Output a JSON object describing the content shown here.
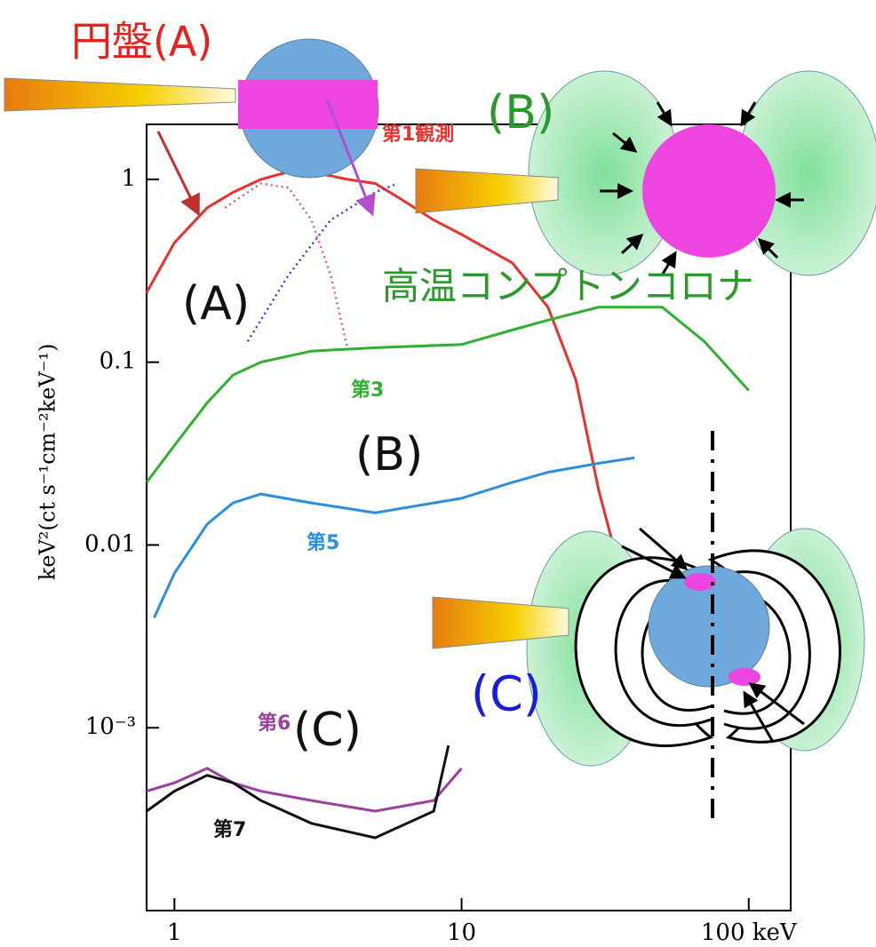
{
  "chart_data": {
    "type": "line",
    "ylabel": "keV²(ct s⁻¹cm⁻²keV⁻¹)",
    "xscale": "log",
    "yscale": "log",
    "xlim": [
      0.8,
      140
    ],
    "ylim": [
      0.0001,
      2
    ],
    "xticks": [
      1,
      10,
      {
        "value": 100,
        "label": "100 keV"
      }
    ],
    "yticks": [
      1,
      0.1,
      0.01,
      {
        "value": 0.001,
        "label": "10⁻³"
      }
    ],
    "series": [
      {
        "name": "第1観測",
        "color": "#e8322b",
        "style": "data",
        "x": [
          0.8,
          1,
          1.3,
          1.6,
          2,
          2.5,
          3,
          4,
          5,
          6,
          8,
          10,
          15,
          20,
          25,
          30,
          35
        ],
        "values": [
          0.24,
          0.45,
          0.7,
          0.85,
          1.0,
          1.1,
          1.1,
          1.0,
          0.95,
          0.8,
          0.6,
          0.5,
          0.35,
          0.2,
          0.08,
          0.02,
          0.008
        ]
      },
      {
        "name": "第3",
        "color": "#2fb02f",
        "style": "data",
        "x": [
          0.8,
          1,
          1.3,
          1.6,
          2,
          3,
          5,
          10,
          15,
          20,
          30,
          50,
          70,
          100
        ],
        "values": [
          0.022,
          0.035,
          0.06,
          0.085,
          0.1,
          0.115,
          0.12,
          0.125,
          0.15,
          0.17,
          0.2,
          0.2,
          0.13,
          0.07
        ]
      },
      {
        "name": "第5",
        "color": "#2a8fe0",
        "style": "data",
        "x": [
          0.85,
          1,
          1.3,
          1.6,
          2,
          3,
          5,
          8,
          10,
          15,
          20,
          30,
          40
        ],
        "values": [
          0.004,
          0.007,
          0.013,
          0.017,
          0.019,
          0.017,
          0.015,
          0.017,
          0.018,
          0.022,
          0.025,
          0.028,
          0.03
        ]
      },
      {
        "name": "第6",
        "color": "#9b3fa0",
        "style": "data",
        "x": [
          0.8,
          1,
          1.3,
          1.6,
          2,
          3,
          5,
          8,
          10
        ],
        "values": [
          0.00045,
          0.0005,
          0.0006,
          0.0005,
          0.00045,
          0.0004,
          0.00035,
          0.0004,
          0.0006
        ]
      },
      {
        "name": "第7",
        "color": "#111111",
        "style": "data",
        "x": [
          0.8,
          1,
          1.3,
          1.6,
          2,
          3,
          5,
          8,
          9
        ],
        "values": [
          0.00035,
          0.00045,
          0.00055,
          0.0005,
          0.0004,
          0.0003,
          0.00025,
          0.00035,
          0.0008
        ]
      },
      {
        "color": "#e05a8a",
        "style": "dotted",
        "x": [
          1.5,
          2,
          2.5,
          3,
          3.5,
          4
        ],
        "values": [
          0.7,
          0.95,
          0.9,
          0.6,
          0.3,
          0.12
        ]
      },
      {
        "color": "#3a3ad0",
        "style": "dotted",
        "x": [
          1.8,
          2.5,
          3.5,
          5,
          6
        ],
        "values": [
          0.13,
          0.3,
          0.6,
          0.85,
          0.95
        ]
      }
    ],
    "annotations": [
      "円盤(A)",
      "(B)",
      "高温コンプトンコロナ",
      "(C)",
      "(A)",
      "(B)",
      "(C)"
    ]
  }
}
